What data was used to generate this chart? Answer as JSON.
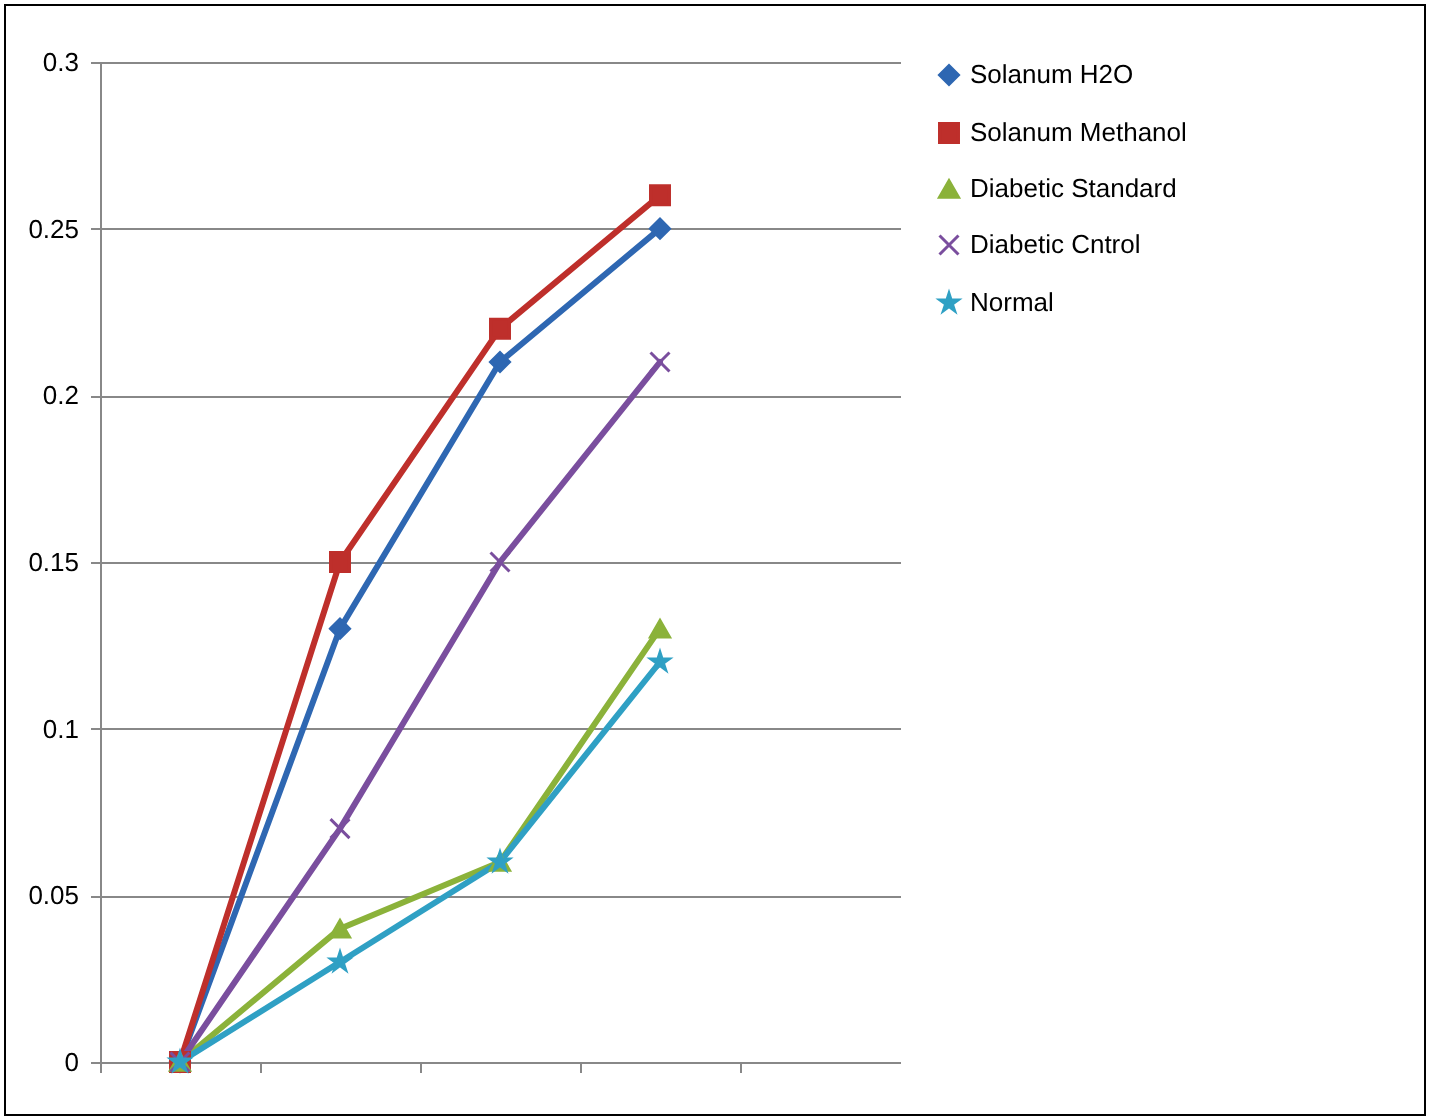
{
  "chart_data": {
    "type": "line",
    "categories": [
      null,
      null,
      null,
      null,
      null
    ],
    "ylim": [
      0,
      0.3
    ],
    "yticks": [
      0,
      0.05,
      0.1,
      0.15,
      0.2,
      0.25,
      0.3
    ],
    "grid": "y",
    "legend": "right",
    "line_style": "solid",
    "series": [
      {
        "name": "Solanum H2O",
        "color": "#2e67b2",
        "marker": "diamond",
        "values": [
          0,
          0.13,
          0.21,
          0.25,
          null
        ]
      },
      {
        "name": "Solanum Methanol",
        "color": "#be2f2b",
        "marker": "square",
        "values": [
          0,
          0.15,
          0.22,
          0.26,
          null
        ]
      },
      {
        "name": "Diabetic Standard",
        "color": "#8bb23a",
        "marker": "triangle",
        "values": [
          0,
          0.04,
          0.06,
          0.13,
          null
        ]
      },
      {
        "name": "Diabetic Cntrol",
        "color": "#7a4e9e",
        "marker": "cross",
        "values": [
          0,
          0.07,
          0.15,
          0.21,
          null
        ]
      },
      {
        "name": "Normal",
        "color": "#2fa0c4",
        "marker": "star",
        "values": [
          0,
          0.03,
          0.06,
          0.12,
          null
        ]
      }
    ]
  }
}
